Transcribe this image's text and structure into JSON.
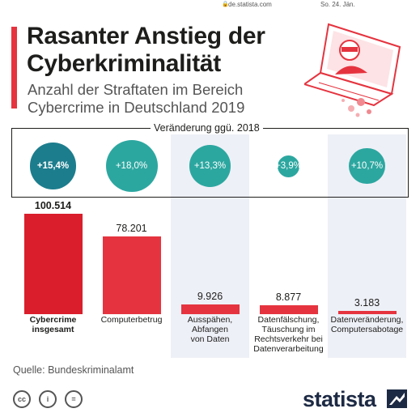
{
  "statusbar": {
    "url": "de.statista.com",
    "date": "So. 24. Jän."
  },
  "header": {
    "title_line1": "Rasanter Anstieg der",
    "title_line2": "Cyberkriminalität",
    "subtitle_line1": "Anzahl der Straftaten im Bereich",
    "subtitle_line2": "Cybercrime in Deutschland 2019"
  },
  "change_label": "Veränderung ggü. 2018",
  "chart_data": {
    "type": "bar",
    "title": "Rasanter Anstieg der Cyberkriminalität",
    "subtitle": "Anzahl der Straftaten im Bereich Cybercrime in Deutschland 2019",
    "categories": [
      "Cybercrime insgesamt",
      "Computerbetrug",
      "Ausspähen, Abfangen von Daten",
      "Datenfälschung, Täuschung im Rechtsverkehr bei Datenverarbeitung",
      "Datenveränderung, Computersabotage"
    ],
    "category_lines": [
      [
        "Cybercrime",
        "insgesamt"
      ],
      [
        "Computerbetrug"
      ],
      [
        "Ausspähen,",
        "Abfangen",
        "von Daten"
      ],
      [
        "Datenfälschung,",
        "Täuschung im",
        "Rechtsverkehr bei",
        "Datenverarbeitung"
      ],
      [
        "Datenveränderung,",
        "Computersabotage"
      ]
    ],
    "values": [
      100514,
      78201,
      9926,
      8877,
      3183
    ],
    "value_labels": [
      "100.514",
      "78.201",
      "9.926",
      "8.877",
      "3.183"
    ],
    "changes": [
      15.4,
      18.0,
      13.3,
      3.9,
      10.7
    ],
    "change_labels": [
      "+15,4%",
      "+18,0%",
      "+13,3%",
      "+3,9%",
      "+10,7%"
    ],
    "colors": {
      "bar_total": "#da1e2b",
      "bar": "#e5343f",
      "bubble_total": "#1c7d8d",
      "bubble": "#2ca7a0",
      "column_shade": "#eef0f7"
    }
  },
  "footer": {
    "source": "Quelle: Bundeskriminalamt",
    "license_icons": [
      "cc-icon",
      "attribution-icon",
      "no-derivatives-icon"
    ],
    "license_glyphs": [
      "cc",
      "i",
      "="
    ],
    "brand": "statista"
  }
}
